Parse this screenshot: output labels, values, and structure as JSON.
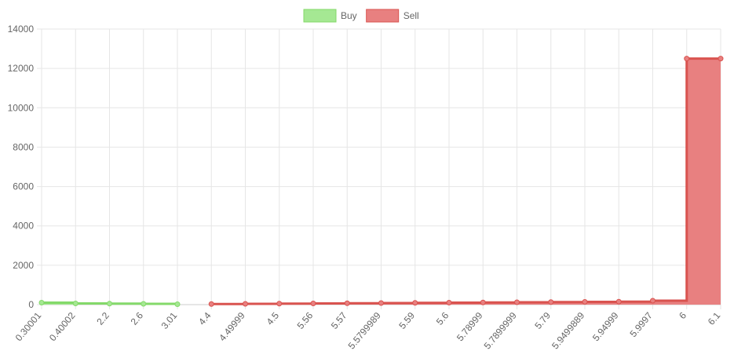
{
  "chart_data": {
    "type": "stepped-area",
    "categories": [
      "0.30001",
      "0.40002",
      "2.2",
      "2.6",
      "3.01",
      "4.4",
      "4.49999",
      "4.5",
      "5.56",
      "5.57",
      "5.5799989",
      "5.59",
      "5.6",
      "5.78999",
      "5.7899999",
      "5.79",
      "5.9499889",
      "5.94999",
      "5.9997",
      "6",
      "6.1"
    ],
    "series": [
      {
        "name": "Buy",
        "color": "#84d96a",
        "fill": "#a5e893",
        "values": [
          100,
          60,
          50,
          40,
          20,
          null,
          null,
          null,
          null,
          null,
          null,
          null,
          null,
          null,
          null,
          null,
          null,
          null,
          null,
          null,
          null
        ]
      },
      {
        "name": "Sell",
        "color": "#d9534f",
        "fill": "#e88080",
        "values": [
          null,
          null,
          null,
          null,
          null,
          30,
          40,
          50,
          60,
          70,
          80,
          90,
          100,
          110,
          120,
          130,
          140,
          150,
          200,
          12500,
          12500
        ]
      }
    ],
    "ylim": [
      0,
      14000
    ],
    "yticks": [
      0,
      2000,
      4000,
      6000,
      8000,
      10000,
      12000,
      14000
    ],
    "grid": true
  }
}
